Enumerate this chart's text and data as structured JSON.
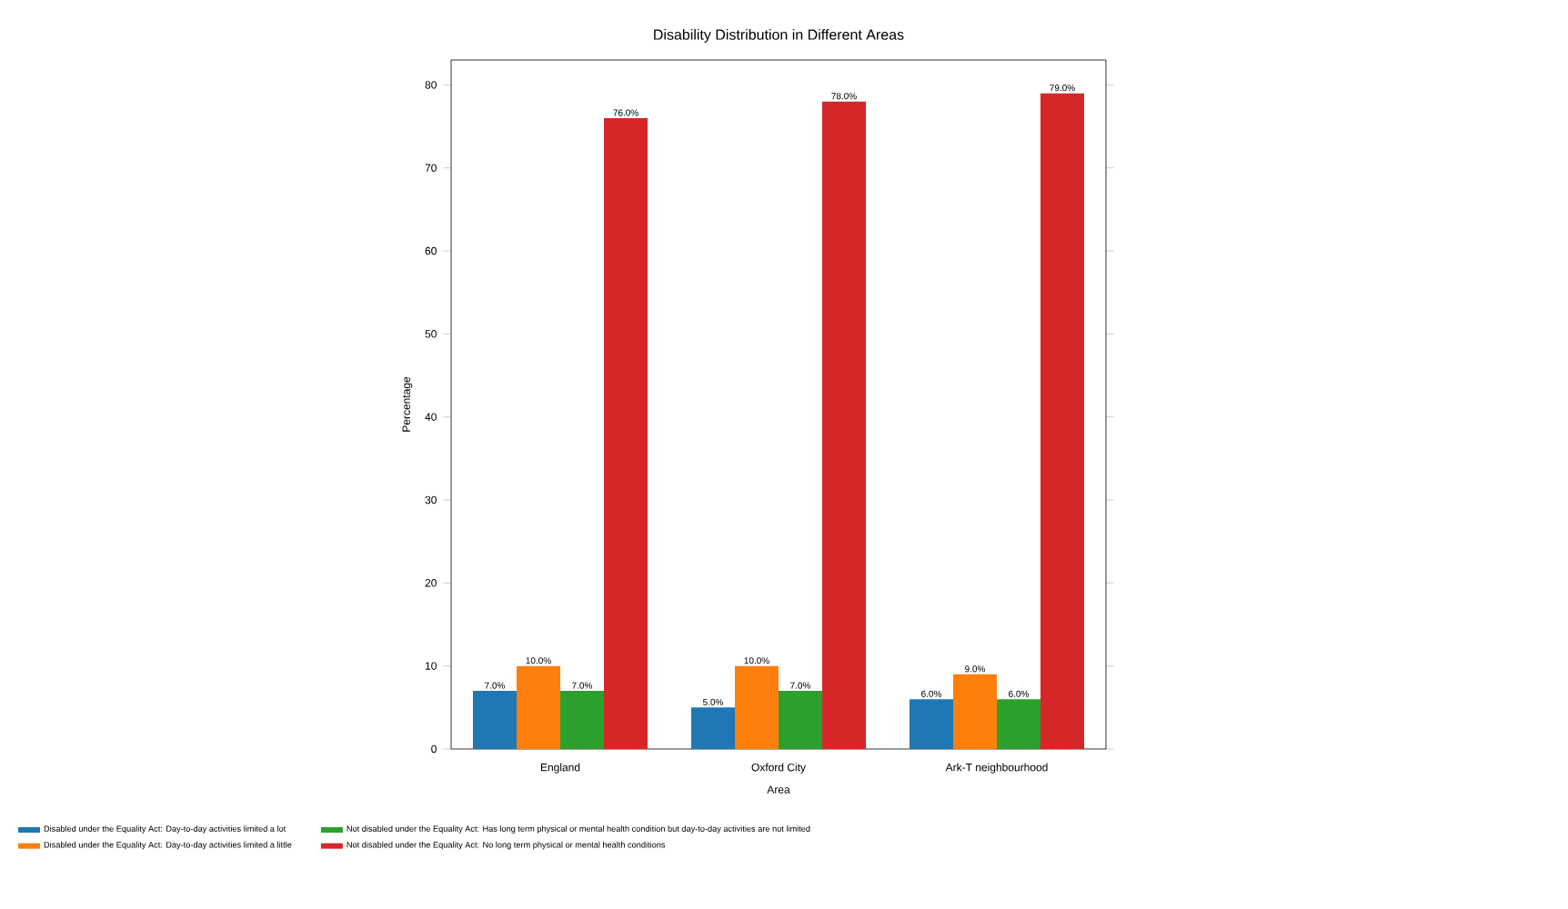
{
  "chart_data": {
    "type": "bar",
    "title": "Disability Distribution in Different Areas",
    "xlabel": "Area",
    "ylabel": "Percentage",
    "categories": [
      "England",
      "Oxford City",
      "Ark-T neighbourhood"
    ],
    "series": [
      {
        "name": "Disabled under the Equality Act: Day-to-day activities limited a lot",
        "color": "#1f77b4",
        "values": [
          7,
          5,
          6
        ],
        "value_labels": [
          "7.0%",
          "5.0%",
          "6.0%"
        ]
      },
      {
        "name": "Disabled under the Equality Act: Day-to-day activities limited a little",
        "color": "#ff7f0e",
        "values": [
          10,
          10,
          9
        ],
        "value_labels": [
          "10.0%",
          "10.0%",
          "9.0%"
        ]
      },
      {
        "name": "Not disabled under the Equality Act: Has long term physical or mental health condition but day-to-day activities are not limited",
        "color": "#2ca02c",
        "values": [
          7,
          7,
          6
        ],
        "value_labels": [
          "7.0%",
          "7.0%",
          "6.0%"
        ]
      },
      {
        "name": "Not disabled under the Equality Act: No long term physical or mental health conditions",
        "color": "#d62728",
        "values": [
          76,
          78,
          79
        ],
        "value_labels": [
          "76.0%",
          "78.0%",
          "79.0%"
        ]
      }
    ],
    "ylim": [
      0,
      83
    ],
    "yticks": [
      0,
      10,
      20,
      30,
      40,
      50,
      60,
      70,
      80
    ],
    "legend": "bottom",
    "grid": false
  }
}
